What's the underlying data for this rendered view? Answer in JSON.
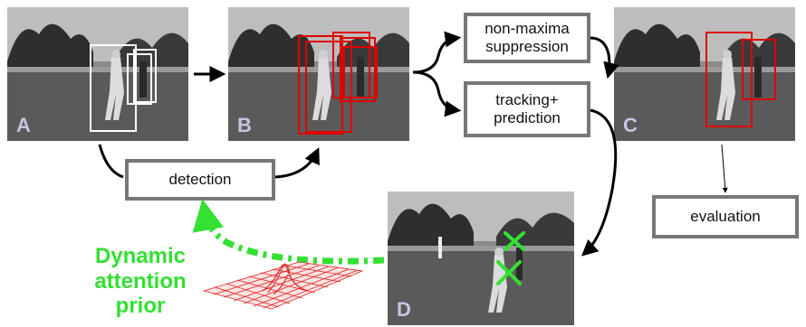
{
  "panels": {
    "a": {
      "letter": "A"
    },
    "b": {
      "letter": "B"
    },
    "c": {
      "letter": "C"
    },
    "d": {
      "letter": "D"
    }
  },
  "boxes": {
    "nms": "non-maxima suppression",
    "tracking": "tracking+ prediction",
    "detection": "detection",
    "evaluation": "evaluation"
  },
  "attention_prior": {
    "line1": "Dynamic",
    "line2": "attention",
    "line3": "prior"
  },
  "colors": {
    "detection_box_white": "#ffffff",
    "detection_box_red": "#e00000",
    "cross_green": "#33e033",
    "prior_arrow_green": "#33e033",
    "surface_red": "#e02020",
    "box_border": "#777777",
    "letter": "#c7c4e3"
  }
}
